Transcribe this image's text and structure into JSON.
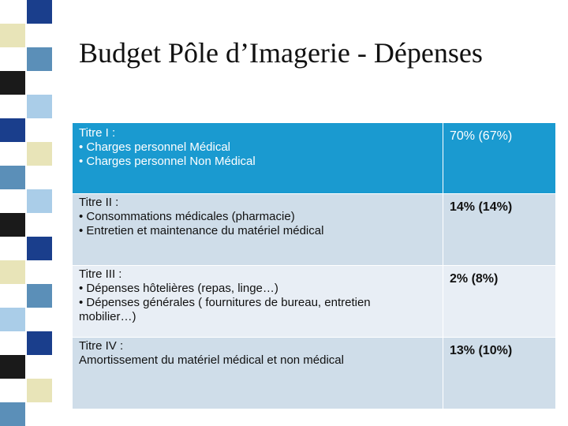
{
  "slide": {
    "title": "Budget Pôle d’Imagerie - Dépenses"
  },
  "stripe_colors": [
    "#1a3e8c",
    "#e8e4b8",
    "#5b8fb8",
    "#1a1a1a",
    "#aacde8",
    "#1a3e8c",
    "#e8e4b8",
    "#5b8fb8",
    "#aacde8",
    "#1a1a1a",
    "#1a3e8c",
    "#e8e4b8",
    "#5b8fb8",
    "#aacde8",
    "#1a3e8c",
    "#1a1a1a",
    "#e8e4b8",
    "#5b8fb8"
  ],
  "table": {
    "rows": [
      {
        "lines": [
          "Titre I :",
          "• Charges personnel Médical",
          "• Charges personnel Non Médical"
        ],
        "value": "70% (67%)"
      },
      {
        "lines": [
          "Titre II :",
          "• Consommations médicales (pharmacie)",
          "• Entretien et maintenance du matériel médical"
        ],
        "value": "14% (14%)"
      },
      {
        "lines": [
          "Titre III :",
          "• Dépenses hôtelières (repas, linge…)",
          "• Dépenses générales ( fournitures de bureau, entretien",
          "mobilier…)"
        ],
        "value": "2% (8%)"
      },
      {
        "lines": [
          "Titre IV :",
          "Amortissement du matériel médical et non médical"
        ],
        "value": "13% (10%)"
      }
    ]
  }
}
